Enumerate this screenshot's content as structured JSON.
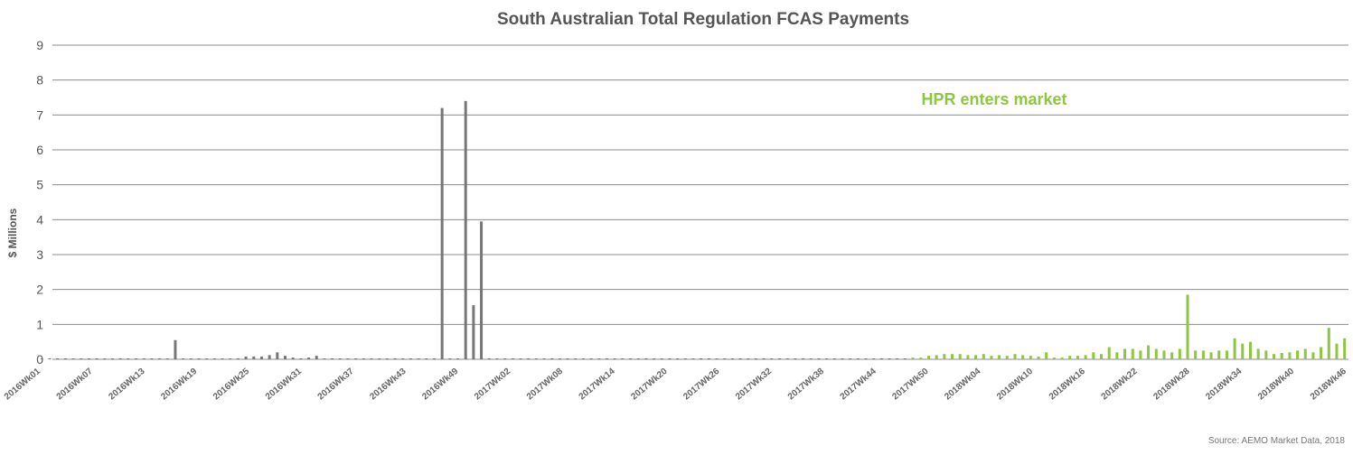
{
  "colors": {
    "pre": "#777777",
    "post": "#8dc63f",
    "annotation": "#8dc63f",
    "grid": "#8c8c8c",
    "text": "#555555"
  },
  "chart_data": {
    "type": "bar",
    "title": "South Australian Total Regulation FCAS Payments",
    "xlabel": "",
    "ylabel": "$ Millions",
    "ylim": [
      0,
      9
    ],
    "yticks": [
      0,
      1,
      2,
      3,
      4,
      5,
      6,
      7,
      8,
      9
    ],
    "grid": true,
    "tick_labels": [
      "2016Wk01",
      "2016Wk07",
      "2016Wk13",
      "2016Wk19",
      "2016Wk25",
      "2016Wk31",
      "2016Wk37",
      "2016Wk43",
      "2016Wk49",
      "2017Wk02",
      "2017Wk08",
      "2017Wk14",
      "2017Wk20",
      "2017Wk26",
      "2017Wk32",
      "2017Wk38",
      "2017Wk44",
      "2017Wk50",
      "2018Wk04",
      "2018Wk10",
      "2018Wk16",
      "2018Wk22",
      "2018Wk28",
      "2018Wk34",
      "2018Wk40",
      "2018Wk46"
    ],
    "annotation": "HPR enters market",
    "source": "Source: AEMO Market Data, 2018",
    "series": [
      {
        "values": [
          0.02,
          0.02,
          0.02,
          0.02,
          0.02,
          0.02,
          0.02,
          0.02,
          0.02,
          0.02,
          0.02,
          0.02,
          0.02,
          0.02,
          0.02,
          0.02,
          0.02,
          0.55,
          0.02,
          0.02,
          0.02,
          0.02,
          0.02,
          0.02,
          0.02,
          0.02,
          0.08,
          0.08,
          0.08,
          0.12,
          0.2,
          0.1,
          0.05,
          0.02,
          0.05,
          0.1,
          0.02,
          0.02,
          0.02,
          0.02,
          0.02,
          0.02,
          0.02,
          0.02,
          0.02,
          0.02,
          0.02,
          0.02,
          0.02,
          0.02,
          0.02,
          7.2,
          0.02,
          0.02,
          7.4,
          1.55,
          3.95,
          0.02,
          0.02,
          0.02,
          0.02,
          0.02,
          0.02,
          0.02,
          0.02,
          0.02,
          0.02,
          0.02,
          0.02,
          0.02,
          0.02,
          0.02,
          0.02,
          0.02,
          0.02,
          0.02,
          0.02,
          0.02,
          0.02,
          0.02,
          0.02,
          0.02,
          0.02,
          0.02,
          0.02,
          0.02,
          0.02,
          0.02,
          0.02,
          0.02,
          0.02,
          0.02,
          0.02,
          0.02,
          0.02,
          0.02,
          0.02,
          0.02,
          0.02,
          0.02,
          0.02,
          0.02,
          0.02,
          0.02,
          0.02,
          0.02,
          0.02,
          0.02,
          0.02,
          0.02,
          0.02
        ]
      },
      {
        "values": [
          0.05,
          0.05,
          0.1,
          0.12,
          0.15,
          0.15,
          0.15,
          0.12,
          0.12,
          0.15,
          0.1,
          0.12,
          0.1,
          0.15,
          0.12,
          0.1,
          0.08,
          0.2,
          0.05,
          0.05,
          0.1,
          0.1,
          0.12,
          0.2,
          0.15,
          0.35,
          0.2,
          0.3,
          0.3,
          0.25,
          0.4,
          0.3,
          0.25,
          0.2,
          0.3,
          1.85,
          0.25,
          0.25,
          0.2,
          0.25,
          0.25,
          0.6,
          0.45,
          0.5,
          0.3,
          0.25,
          0.15,
          0.18,
          0.2,
          0.25,
          0.3,
          0.2,
          0.35,
          0.9,
          0.45,
          0.6
        ]
      }
    ]
  }
}
